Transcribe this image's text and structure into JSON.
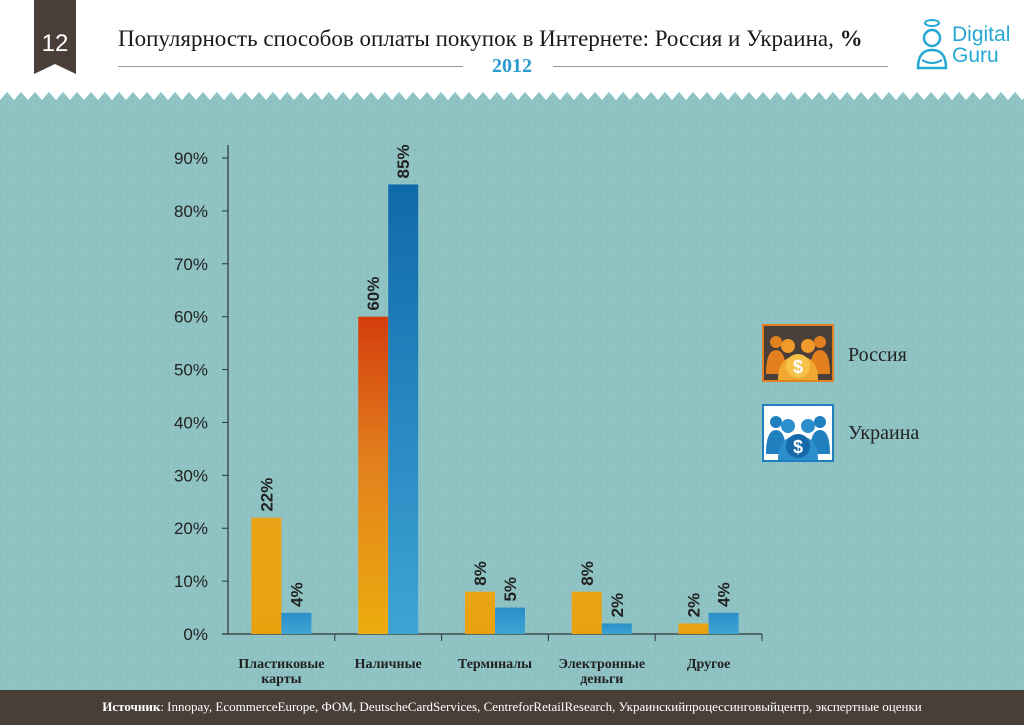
{
  "header": {
    "page_number": "12",
    "title": "Популярность способов оплаты покупок в Интернете: Россия и Украина,",
    "title_suffix": "%",
    "year": "2012"
  },
  "logo": {
    "line1": "Digital",
    "line2": "Guru"
  },
  "legend": [
    {
      "label": "Россия",
      "color": "#e27f1e",
      "icon": "people-dollar-icon"
    },
    {
      "label": "Украина",
      "color": "#1f7fbf",
      "icon": "people-dollar-icon"
    }
  ],
  "chart_data": {
    "type": "bar",
    "title": "Популярность способов оплаты покупок в Интернете: Россия и Украина, %",
    "categories": [
      [
        "Пластиковые",
        "карты"
      ],
      [
        "Наличные"
      ],
      [
        "Терминалы"
      ],
      [
        "Электронные",
        "деньги"
      ],
      [
        "Другое"
      ]
    ],
    "series": [
      {
        "name": "Россия",
        "values": [
          22,
          60,
          8,
          8,
          2
        ],
        "labels": [
          "22%",
          "60%",
          "8%",
          "8%",
          "2%"
        ]
      },
      {
        "name": "Украина",
        "values": [
          4,
          85,
          5,
          2,
          4
        ],
        "labels": [
          "4%",
          "85%",
          "5%",
          "2%",
          "4%"
        ]
      }
    ],
    "yticks": [
      "0%",
      "10%",
      "20%",
      "30%",
      "40%",
      "50%",
      "60%",
      "70%",
      "80%",
      "90%"
    ],
    "ylim": [
      0,
      90
    ],
    "grid": false
  },
  "footer": {
    "source_label": "Источник",
    "source_text": ": Innopay, EcommerceEurope, ФОМ, DeutscheCardServices, CentreforRetailResearch, Украинскийпроцессинговыйцентр, экспертные оценки"
  },
  "colors": {
    "background": "#8fc3c3",
    "footer": "#4a3f38",
    "badge": "#4a3f38",
    "year": "#2a9bd0"
  }
}
